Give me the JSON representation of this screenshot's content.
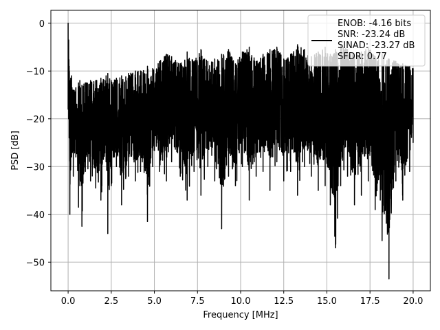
{
  "chart_data": {
    "type": "line",
    "title": "",
    "xlabel": "Frequency [MHz]",
    "ylabel": "PSD [dB]",
    "xlim": [
      -1.0,
      21.0
    ],
    "ylim": [
      -56.0,
      2.7
    ],
    "xticks": [
      0.0,
      2.5,
      5.0,
      7.5,
      10.0,
      12.5,
      15.0,
      17.5,
      20.0
    ],
    "xtick_labels": [
      "0.0",
      "2.5",
      "5.0",
      "7.5",
      "10.0",
      "12.5",
      "15.0",
      "17.5",
      "20.0"
    ],
    "yticks": [
      0,
      -10,
      -20,
      -30,
      -40,
      -50
    ],
    "ytick_labels": [
      "0",
      "−10",
      "−20",
      "−30",
      "−40",
      "−50"
    ],
    "grid": true,
    "legend": {
      "placement": "top-right",
      "entries": [
        "ENOB: -4.16 bits",
        "SNR: -23.24 dB",
        "SINAD: -23.27 dB",
        "SFDR: 0.77"
      ]
    },
    "series": [
      {
        "color": "#000000",
        "x": [
          0.0,
          0.03,
          0.06,
          0.1,
          0.15,
          0.2,
          0.3,
          0.45,
          0.6,
          0.68,
          0.8,
          1.0,
          1.3,
          1.6,
          1.9,
          2.2,
          2.3,
          2.5,
          2.8,
          3.1,
          3.5,
          3.9,
          4.2,
          4.6,
          4.9,
          5.3,
          5.7,
          6.0,
          6.5,
          6.9,
          7.3,
          7.7,
          8.1,
          8.5,
          8.9,
          9.3,
          9.7,
          10.1,
          10.5,
          10.9,
          11.3,
          11.7,
          12.1,
          12.5,
          12.9,
          13.3,
          13.7,
          14.1,
          14.5,
          14.9,
          15.2,
          15.5,
          15.8,
          16.2,
          16.6,
          17.0,
          17.4,
          17.8,
          18.2,
          18.6,
          19.0,
          19.4,
          19.8,
          20.0
        ],
        "y_max": [
          0.0,
          -3.5,
          -9.0,
          -12.0,
          -11.5,
          -11.0,
          -14.0,
          -13.5,
          -12.5,
          -12.0,
          -13.0,
          -12.5,
          -12.0,
          -12.0,
          -11.5,
          -11.0,
          -10.5,
          -12.0,
          -11.5,
          -11.0,
          -10.5,
          -10.0,
          -10.0,
          -9.0,
          -9.5,
          -8.0,
          -6.5,
          -7.0,
          -8.5,
          -6.0,
          -8.0,
          -5.5,
          -8.0,
          -7.5,
          -6.5,
          -5.5,
          -8.5,
          -6.0,
          -5.0,
          -8.0,
          -6.5,
          -5.5,
          -5.0,
          -7.5,
          -6.5,
          -4.5,
          -5.5,
          -7.0,
          -6.0,
          -5.0,
          -6.5,
          -5.5,
          -4.5,
          -5.5,
          -7.0,
          -6.0,
          -5.0,
          -7.0,
          -6.5,
          -7.5,
          -8.0,
          -8.5,
          -9.0,
          -9.5
        ],
        "y_min": [
          -18.0,
          -20.0,
          -24.0,
          -40.0,
          -30.0,
          -28.0,
          -32.0,
          -28.0,
          -38.5,
          -34.0,
          -42.5,
          -31.0,
          -33.0,
          -34.5,
          -37.0,
          -29.0,
          -44.0,
          -34.0,
          -30.0,
          -38.0,
          -32.0,
          -33.0,
          -31.0,
          -41.5,
          -30.0,
          -31.0,
          -33.0,
          -29.0,
          -32.0,
          -37.0,
          -31.0,
          -36.0,
          -30.0,
          -33.0,
          -43.0,
          -32.0,
          -34.0,
          -30.0,
          -37.0,
          -32.0,
          -31.0,
          -35.0,
          -29.0,
          -33.0,
          -31.0,
          -36.0,
          -30.0,
          -32.0,
          -35.0,
          -34.0,
          -38.0,
          -47.0,
          -34.0,
          -32.0,
          -38.0,
          -36.0,
          -33.0,
          -39.0,
          -45.5,
          -53.5,
          -33.0,
          -37.0,
          -31.0,
          -25.0
        ]
      }
    ]
  }
}
